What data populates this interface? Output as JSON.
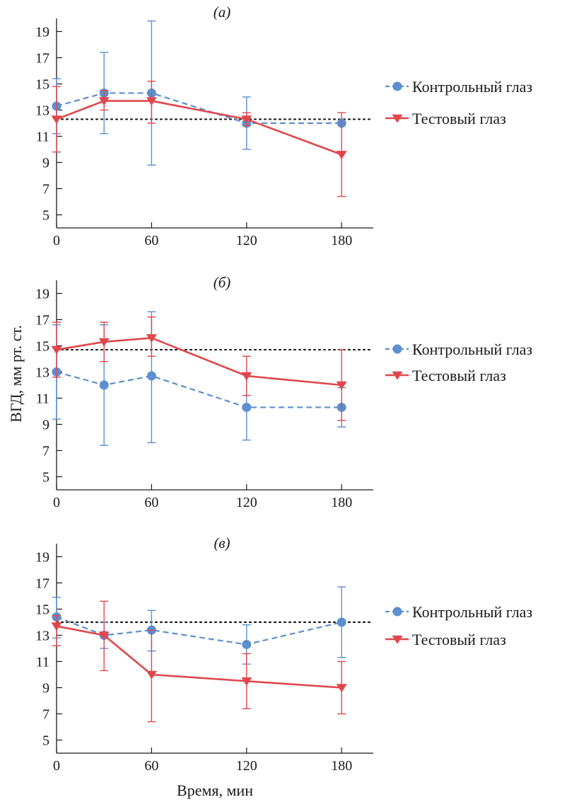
{
  "figure": {
    "ylabel": "ВГД, мм рт. ст.",
    "xlabel": "Время, мин"
  },
  "colors": {
    "control": "#5b8fd0",
    "test": "#e0474c",
    "baseline": "#1a1a1a"
  },
  "chart_data": [
    {
      "type": "line",
      "title": "(а)",
      "x": [
        0,
        30,
        60,
        120,
        180
      ],
      "xticks": [
        0,
        60,
        120,
        180
      ],
      "xlim": [
        0,
        200
      ],
      "ylim": [
        4,
        20
      ],
      "yticks": [
        5,
        7,
        9,
        11,
        13,
        15,
        17,
        19
      ],
      "baseline": 12.3,
      "legend": "right",
      "series": [
        {
          "name": "Контрольный глаз",
          "style": "dashed",
          "marker": "circle",
          "values": [
            13.3,
            14.3,
            14.3,
            12.0,
            12.0
          ],
          "err_low": [
            11.2,
            11.2,
            8.8,
            10.0,
            12.0
          ],
          "err_high": [
            15.4,
            17.4,
            19.8,
            14.0,
            12.0
          ]
        },
        {
          "name": "Тестовый глаз",
          "style": "solid",
          "marker": "triangle-down",
          "values": [
            12.3,
            13.7,
            13.7,
            12.3,
            9.6
          ],
          "err_low": [
            9.8,
            13.0,
            12.0,
            11.8,
            6.4
          ],
          "err_high": [
            14.8,
            14.5,
            15.2,
            12.8,
            12.8
          ]
        }
      ]
    },
    {
      "type": "line",
      "title": "(б)",
      "x": [
        0,
        30,
        60,
        120,
        180
      ],
      "xticks": [
        0,
        60,
        120,
        180
      ],
      "xlim": [
        0,
        200
      ],
      "ylim": [
        4,
        20
      ],
      "yticks": [
        5,
        7,
        9,
        11,
        13,
        15,
        17,
        19
      ],
      "baseline": 14.7,
      "legend": "right",
      "series": [
        {
          "name": "Контрольный глаз",
          "style": "dashed",
          "marker": "circle",
          "values": [
            13.0,
            12.0,
            12.7,
            10.3,
            10.3
          ],
          "err_low": [
            9.4,
            7.4,
            7.6,
            7.8,
            8.8
          ],
          "err_high": [
            16.6,
            16.6,
            17.6,
            12.8,
            11.8
          ]
        },
        {
          "name": "Тестовый глаз",
          "style": "solid",
          "marker": "triangle-down",
          "values": [
            14.7,
            15.3,
            15.6,
            12.7,
            12.0
          ],
          "err_low": [
            12.6,
            13.8,
            14.2,
            11.2,
            9.3
          ],
          "err_high": [
            16.8,
            16.8,
            17.2,
            14.2,
            14.7
          ]
        }
      ]
    },
    {
      "type": "line",
      "title": "(в)",
      "x": [
        0,
        30,
        60,
        120,
        180
      ],
      "xticks": [
        0,
        60,
        120,
        180
      ],
      "xlim": [
        0,
        200
      ],
      "ylim": [
        4,
        20
      ],
      "yticks": [
        5,
        7,
        9,
        11,
        13,
        15,
        17,
        19
      ],
      "baseline": 14.0,
      "legend": "right",
      "series": [
        {
          "name": "Контрольный глаз",
          "style": "dashed",
          "marker": "circle",
          "values": [
            14.4,
            13.0,
            13.4,
            12.3,
            14.0
          ],
          "err_low": [
            12.8,
            12.0,
            11.8,
            10.8,
            11.3
          ],
          "err_high": [
            15.9,
            14.0,
            14.9,
            13.8,
            16.7
          ]
        },
        {
          "name": "Тестовый глаз",
          "style": "solid",
          "marker": "triangle-down",
          "values": [
            13.7,
            13.0,
            10.0,
            9.5,
            9.0
          ],
          "err_low": [
            12.2,
            10.3,
            6.4,
            7.4,
            7.0
          ],
          "err_high": [
            14.5,
            15.6,
            13.4,
            11.6,
            11.0
          ]
        }
      ]
    }
  ]
}
